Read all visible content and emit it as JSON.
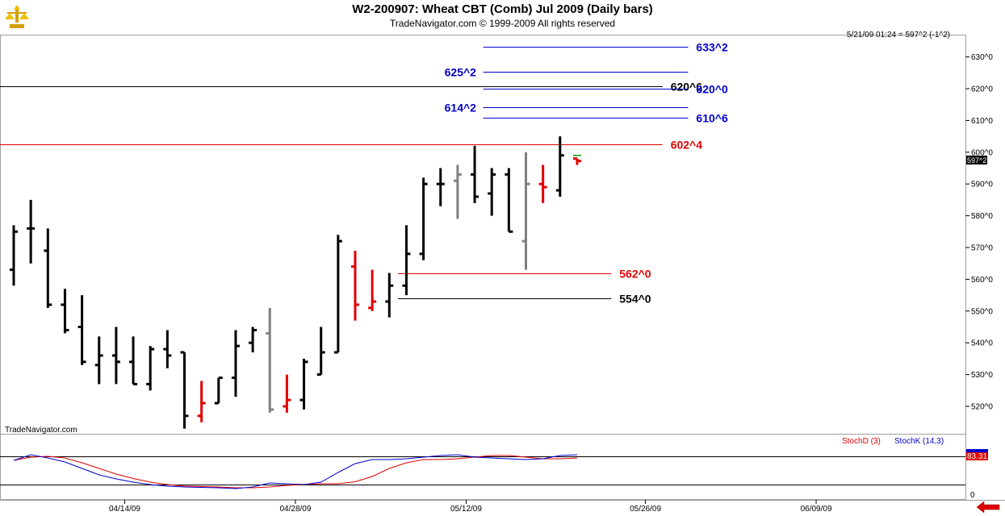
{
  "header": {
    "title": "W2-200907:  Wheat CBT (Comb) Jul 2009  (Daily bars)",
    "subtitle": "TradeNavigator.com © 1999-2009 All rights reserved",
    "quote": "5/21/09 01:24 = 597^2 (-1^2)",
    "watermark": "TradeNavigator.com"
  },
  "price_tag": {
    "label": "597^2",
    "value": 597.25
  },
  "lower_panel": {
    "legend_d": "StochD (3)",
    "legend_k": "StochK (14,3)",
    "value_tag": "83.31",
    "zero_label": "0"
  },
  "colors": {
    "bar_up": "#000000",
    "bar_red": "#e00000",
    "bar_gray": "#808080",
    "level_blue": "#0000cc",
    "level_red": "#e00000",
    "stoch_k": "#0000cc",
    "stoch_d": "#e00000"
  },
  "chart_data": [
    {
      "type": "ohlc",
      "title": "W2-200907:  Wheat CBT (Comb) Jul 2009  (Daily bars)",
      "ylim": [
        512,
        642
      ],
      "yticks": [
        520,
        530,
        540,
        550,
        560,
        570,
        580,
        590,
        600,
        610,
        620,
        630
      ],
      "ytick_labels": [
        "520^0",
        "530^0",
        "540^0",
        "550^0",
        "560^0",
        "570^0",
        "580^0",
        "590^0",
        "600^0",
        "610^0",
        "620^0",
        "630^0"
      ],
      "x_labels": [
        {
          "label": "04/14/09",
          "index": 6.5
        },
        {
          "label": "04/28/09",
          "index": 16.5
        },
        {
          "label": "05/12/09",
          "index": 26.5
        },
        {
          "label": "05/26/09",
          "index": 37
        },
        {
          "label": "06/09/09",
          "index": 47
        }
      ],
      "bars": [
        {
          "o": 563,
          "h": 577,
          "l": 558,
          "c": 575,
          "color": "black"
        },
        {
          "o": 576,
          "h": 585,
          "l": 565,
          "c": 576,
          "color": "black"
        },
        {
          "o": 569,
          "h": 576,
          "l": 551,
          "c": 552,
          "color": "black"
        },
        {
          "o": 552,
          "h": 557,
          "l": 543,
          "c": 544,
          "color": "black"
        },
        {
          "o": 545,
          "h": 555,
          "l": 533,
          "c": 534,
          "color": "black"
        },
        {
          "o": 533,
          "h": 542,
          "l": 527,
          "c": 536,
          "color": "black"
        },
        {
          "o": 536,
          "h": 545,
          "l": 527,
          "c": 534,
          "color": "black"
        },
        {
          "o": 534,
          "h": 542,
          "l": 527,
          "c": 527,
          "color": "black"
        },
        {
          "o": 527,
          "h": 539,
          "l": 525,
          "c": 538,
          "color": "black"
        },
        {
          "o": 538,
          "h": 544,
          "l": 532,
          "c": 536,
          "color": "black"
        },
        {
          "o": 537,
          "h": 537,
          "l": 513,
          "c": 517,
          "color": "black"
        },
        {
          "o": 517,
          "h": 528,
          "l": 515,
          "c": 521,
          "color": "red"
        },
        {
          "o": 521,
          "h": 529,
          "l": 521,
          "c": 529,
          "color": "black"
        },
        {
          "o": 529,
          "h": 544,
          "l": 523,
          "c": 539,
          "color": "black"
        },
        {
          "o": 540,
          "h": 545,
          "l": 537,
          "c": 544,
          "color": "black"
        },
        {
          "o": 543,
          "h": 551,
          "l": 518,
          "c": 519,
          "color": "gray"
        },
        {
          "o": 520,
          "h": 530,
          "l": 518,
          "c": 522,
          "color": "red"
        },
        {
          "o": 522,
          "h": 535,
          "l": 519,
          "c": 534,
          "color": "black"
        },
        {
          "o": 530,
          "h": 545,
          "l": 530,
          "c": 537,
          "color": "black"
        },
        {
          "o": 537,
          "h": 574,
          "l": 537,
          "c": 572,
          "color": "black"
        },
        {
          "o": 564,
          "h": 569,
          "l": 547,
          "c": 552,
          "color": "red"
        },
        {
          "o": 551,
          "h": 563,
          "l": 550,
          "c": 553,
          "color": "red"
        },
        {
          "o": 553,
          "h": 562,
          "l": 548,
          "c": 558,
          "color": "black"
        },
        {
          "o": 558,
          "h": 577,
          "l": 555,
          "c": 568,
          "color": "black"
        },
        {
          "o": 568,
          "h": 592,
          "l": 566,
          "c": 590,
          "color": "black"
        },
        {
          "o": 590,
          "h": 595,
          "l": 583,
          "c": 590,
          "color": "black"
        },
        {
          "o": 591,
          "h": 596,
          "l": 579,
          "c": 593,
          "color": "gray"
        },
        {
          "o": 593,
          "h": 602,
          "l": 584,
          "c": 586,
          "color": "black"
        },
        {
          "o": 587,
          "h": 595,
          "l": 580,
          "c": 593,
          "color": "black"
        },
        {
          "o": 593,
          "h": 595,
          "l": 575,
          "c": 575,
          "color": "black"
        },
        {
          "o": 572,
          "h": 600,
          "l": 563,
          "c": 590,
          "color": "gray"
        },
        {
          "o": 590,
          "h": 596,
          "l": 584,
          "c": 589,
          "color": "red"
        },
        {
          "o": 588,
          "h": 605,
          "l": 586,
          "c": 599,
          "color": "black"
        },
        {
          "o": 598,
          "h": 598,
          "l": 596,
          "c": 597.25,
          "color": "red"
        }
      ],
      "levels": [
        {
          "label": "633^2",
          "value": 633.25,
          "color": "blue",
          "x_from": 27.5,
          "x_to": 39.5,
          "label_side": "right"
        },
        {
          "label": "625^2",
          "value": 625.25,
          "color": "blue",
          "x_from": 27.5,
          "x_to": 39.5,
          "label_side": "left"
        },
        {
          "label": "620^6",
          "value": 620.75,
          "color": "black",
          "x_from": -1,
          "x_to": 38,
          "label_side": "right"
        },
        {
          "label": "620^0",
          "value": 620.0,
          "color": "blue",
          "x_from": 27.5,
          "x_to": 39.5,
          "label_side": "right"
        },
        {
          "label": "614^2",
          "value": 614.25,
          "color": "blue",
          "x_from": 27.5,
          "x_to": 39.5,
          "label_side": "left"
        },
        {
          "label": "610^6",
          "value": 610.75,
          "color": "blue",
          "x_from": 27.5,
          "x_to": 39.5,
          "label_side": "right"
        },
        {
          "label": "602^4",
          "value": 602.5,
          "color": "red",
          "x_from": -1,
          "x_to": 38,
          "label_side": "right"
        },
        {
          "label": "562^0",
          "value": 562.0,
          "color": "red",
          "x_from": 22.5,
          "x_to": 35,
          "label_side": "right"
        },
        {
          "label": "554^0",
          "value": 554.0,
          "color": "black",
          "x_from": 22.5,
          "x_to": 35,
          "label_side": "right"
        }
      ]
    },
    {
      "type": "line",
      "title": "",
      "ylim": [
        0,
        100
      ],
      "series": [
        {
          "name": "StochD (3)",
          "color": "red",
          "values": [
            78,
            86,
            88,
            84,
            72,
            58,
            44,
            33,
            24,
            18,
            14,
            13,
            12,
            10,
            10,
            12,
            16,
            18,
            20,
            20,
            25,
            38,
            58,
            72,
            80,
            80,
            82,
            86,
            90,
            90,
            86,
            82,
            82,
            84
          ]
        },
        {
          "name": "StochK (14,3)",
          "color": "blue",
          "values": [
            78,
            92,
            84,
            74,
            58,
            42,
            32,
            24,
            18,
            14,
            12,
            11,
            10,
            8,
            12,
            22,
            20,
            18,
            24,
            48,
            70,
            80,
            80,
            82,
            86,
            90,
            92,
            86,
            84,
            82,
            80,
            82,
            90,
            92
          ]
        }
      ]
    }
  ]
}
